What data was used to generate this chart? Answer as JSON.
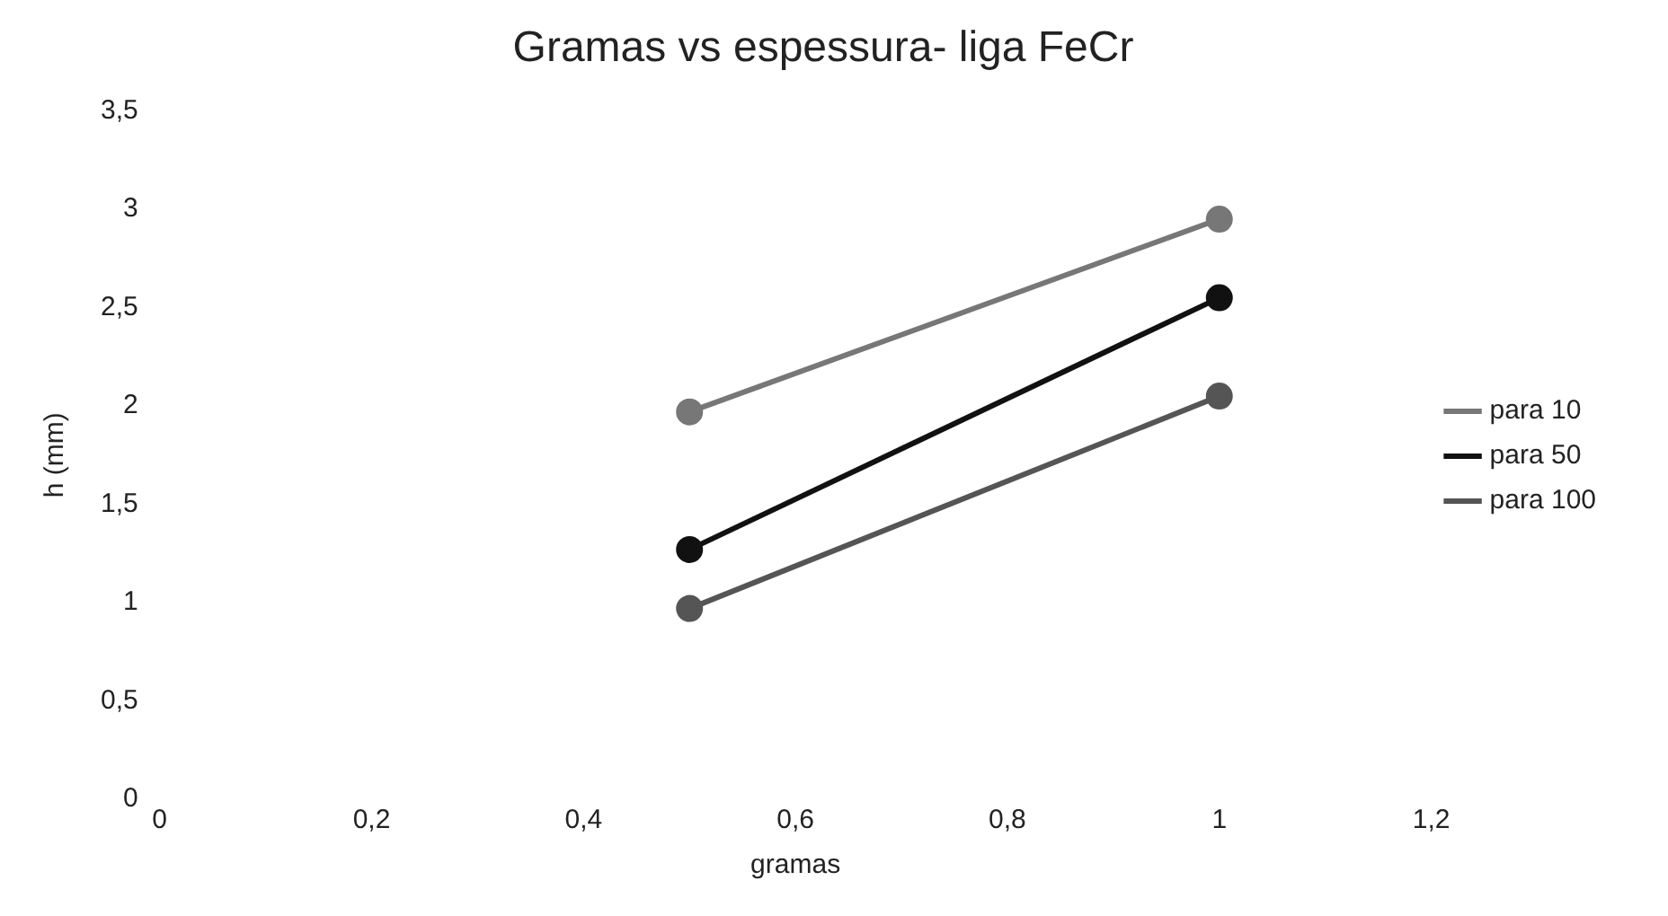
{
  "chart_data": {
    "type": "line",
    "title": "Gramas vs espessura- liga FeCr",
    "xlabel": "gramas",
    "ylabel": "h (mm)",
    "x": [
      0.5,
      1
    ],
    "series": [
      {
        "name": "para 10",
        "color": "#777777",
        "values": [
          1.97,
          2.95
        ]
      },
      {
        "name": "para 50",
        "color": "#111111",
        "values": [
          1.27,
          2.55
        ]
      },
      {
        "name": "para 100",
        "color": "#555555",
        "values": [
          0.97,
          2.05
        ]
      }
    ],
    "xlim": [
      0,
      1.2
    ],
    "xticks": [
      {
        "value": 0,
        "label": "0"
      },
      {
        "value": 0.2,
        "label": "0,2"
      },
      {
        "value": 0.4,
        "label": "0,4"
      },
      {
        "value": 0.6,
        "label": "0,6"
      },
      {
        "value": 0.8,
        "label": "0,8"
      },
      {
        "value": 1,
        "label": "1"
      },
      {
        "value": 1.2,
        "label": "1,2"
      }
    ],
    "ylim": [
      0,
      3.5
    ],
    "yticks": [
      {
        "value": 0,
        "label": "0"
      },
      {
        "value": 0.5,
        "label": "0,5"
      },
      {
        "value": 1,
        "label": "1"
      },
      {
        "value": 1.5,
        "label": "1,5"
      },
      {
        "value": 2,
        "label": "2"
      },
      {
        "value": 2.5,
        "label": "2,5"
      },
      {
        "value": 3,
        "label": "3"
      },
      {
        "value": 3.5,
        "label": "3,5"
      }
    ],
    "grid": false,
    "legend": "right",
    "marker": "circle",
    "line_style": "solid"
  }
}
